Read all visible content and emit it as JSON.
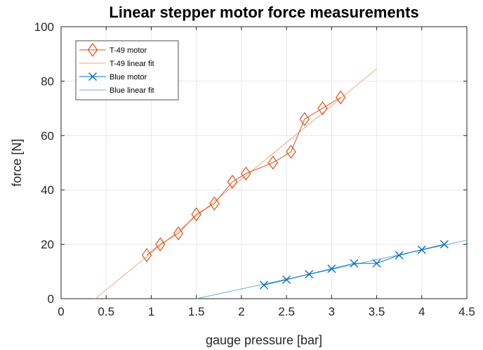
{
  "chart_data": {
    "type": "scatter",
    "title": "Linear stepper motor force measurements",
    "xlabel": "gauge pressure [bar]",
    "ylabel": "force [N]",
    "xlim": [
      0,
      4.5
    ],
    "ylim": [
      0,
      100
    ],
    "xticks": [
      "0",
      "0.5",
      "1",
      "1.5",
      "2",
      "2.5",
      "3",
      "3.5",
      "4",
      "4.5"
    ],
    "yticks": [
      "0",
      "20",
      "40",
      "60",
      "80",
      "100"
    ],
    "grid": true,
    "legend_position": "top-left",
    "series": [
      {
        "name": "T-49 motor",
        "kind": "line-markers",
        "marker": "diamond",
        "color": "#D95319",
        "x": [
          0.95,
          1.1,
          1.3,
          1.5,
          1.7,
          1.9,
          2.05,
          2.35,
          2.55,
          2.7,
          2.9,
          3.1
        ],
        "y": [
          16,
          20,
          24,
          31,
          35,
          43,
          46,
          50,
          54,
          66,
          70,
          74
        ]
      },
      {
        "name": "T-49 linear fit",
        "kind": "line",
        "color": "#F4A582",
        "x": [
          0.38,
          3.5
        ],
        "y": [
          0,
          84.5
        ]
      },
      {
        "name": "Blue motor",
        "kind": "line-markers",
        "marker": "x",
        "color": "#0072BD",
        "x": [
          2.25,
          2.5,
          2.75,
          3.0,
          3.25,
          3.5,
          3.75,
          4.0,
          4.25
        ],
        "y": [
          5,
          7,
          9,
          11,
          13,
          13,
          16,
          18,
          20
        ]
      },
      {
        "name": "Blue linear fit",
        "kind": "line",
        "color": "#6BAED6",
        "x": [
          1.5,
          4.5
        ],
        "y": [
          0,
          21.5
        ]
      }
    ]
  }
}
